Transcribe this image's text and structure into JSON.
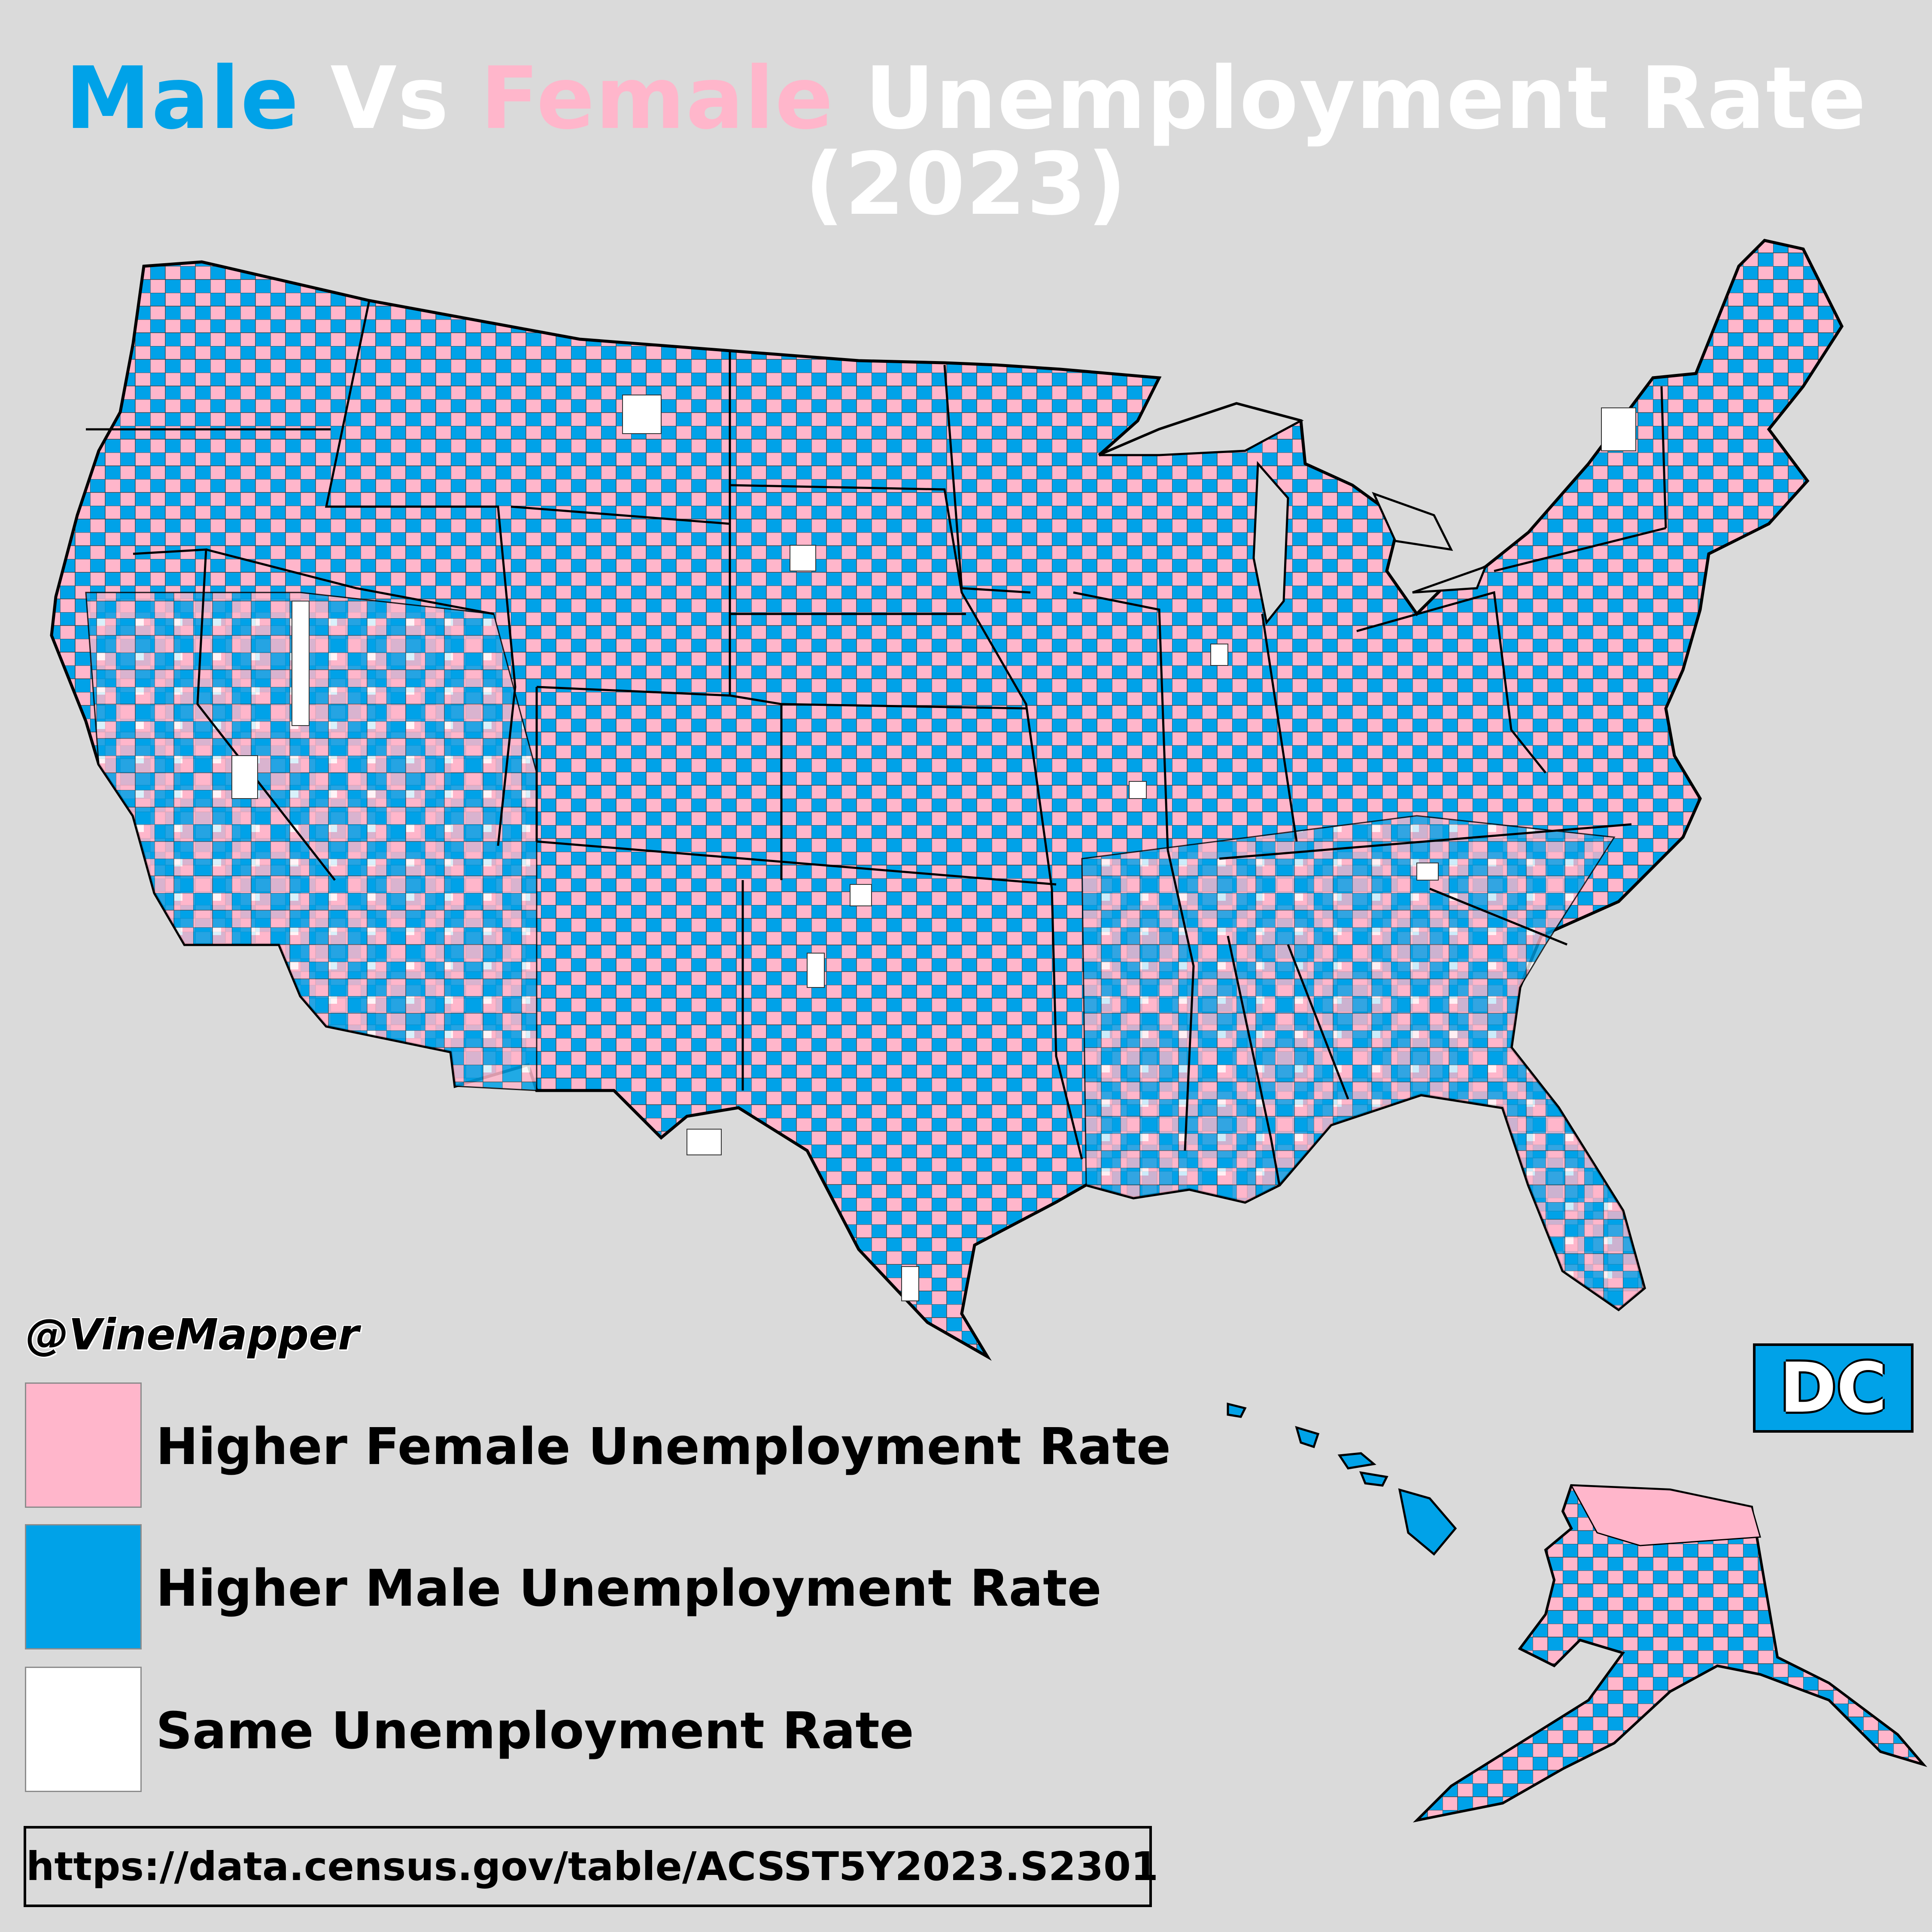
{
  "title": {
    "male": "Male",
    "vs": "Vs",
    "female": "Female",
    "rest": "Unemployment Rate (2023)"
  },
  "credit": "@VineMapper",
  "legend": [
    {
      "label": "Higher Female Unemployment Rate",
      "color": "#ffb6cb"
    },
    {
      "label": "Higher Male Unemployment Rate",
      "color": "#00a2e8"
    },
    {
      "label": "Same Unemployment Rate",
      "color": "#ffffff"
    }
  ],
  "dc_badge": {
    "label": "DC",
    "color": "#00a2e8"
  },
  "source": "https://data.census.gov/table/ACSST5Y2023.S2301",
  "colors": {
    "female_higher": "#ffb6cb",
    "male_higher": "#00a2e8",
    "same": "#ffffff",
    "background": "#dadada",
    "borders": "#000000"
  }
}
